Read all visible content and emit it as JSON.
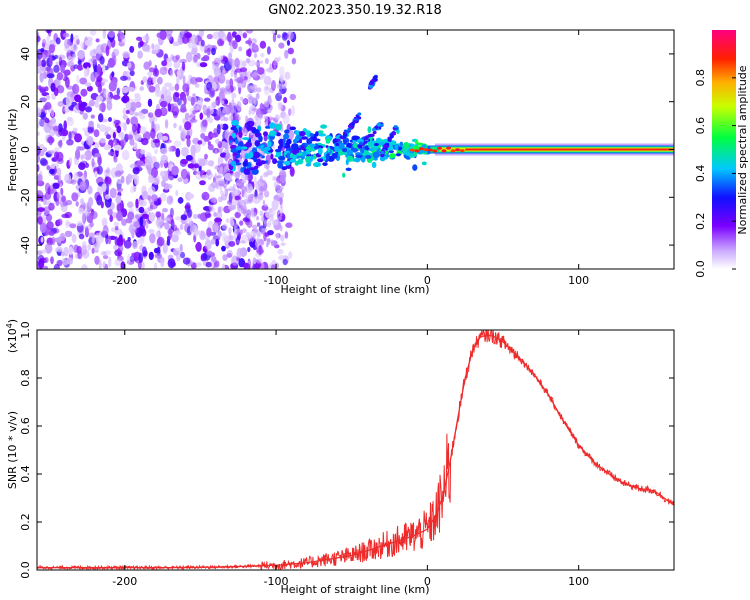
{
  "title": "GN02.2023.350.19.32.R18",
  "colors": {
    "background": "#ffffff",
    "snr_line": "#ee2a2a",
    "axes": "#000000"
  },
  "chart_data": [
    {
      "type": "heatmap",
      "title": "GN02.2023.350.19.32.R18",
      "xlabel": "Height of straight line (km)",
      "ylabel": "Frequency (Hz)",
      "xlim": [
        -258,
        163
      ],
      "ylim": [
        -50,
        50
      ],
      "x_ticks": [
        -200,
        -100,
        0,
        100
      ],
      "x_tick_labels": [
        "-200",
        "-100",
        "0",
        "100"
      ],
      "y_ticks": [
        -40,
        -20,
        0,
        20,
        40
      ],
      "y_tick_labels": [
        "-40",
        "-20",
        "0",
        "20",
        "40"
      ],
      "colorbar": {
        "label": "Normalized spectral amplitude",
        "range": [
          0.0,
          1.0
        ],
        "ticks": [
          0.0,
          0.2,
          0.4,
          0.6,
          0.8
        ],
        "tick_labels": [
          "0.0",
          "0.2",
          "0.4",
          "0.6",
          "0.8"
        ],
        "colormap": "rainbow (white-purple-blue-cyan-green-yellow-red-magenta)"
      },
      "features": [
        {
          "description": "diffuse noise",
          "x_range": [
            -258,
            -95
          ],
          "y_range": [
            -50,
            50
          ],
          "amplitude": 0.1
        },
        {
          "description": "tapering signal onset",
          "x_range": [
            -130,
            0
          ],
          "y_center": 0,
          "amplitude": 0.3
        },
        {
          "description": "strong carrier line",
          "x_range": [
            0,
            163
          ],
          "y_center": 0,
          "amplitude": 0.9
        }
      ]
    },
    {
      "type": "line",
      "xlabel": "Height of straight line (km)",
      "ylabel": "SNR (10 * v/v)",
      "y_scale_label": "(x10",
      "y_scale_exponent": "4",
      "xlim": [
        -258,
        163
      ],
      "ylim": [
        0.0,
        1.0
      ],
      "x_ticks": [
        -200,
        -100,
        0,
        100
      ],
      "x_tick_labels": [
        "-200",
        "-100",
        "0",
        "100"
      ],
      "y_ticks": [
        0.0,
        0.2,
        0.4,
        0.6,
        0.8,
        1.0
      ],
      "y_tick_labels": [
        "0.0",
        "0.2",
        "0.4",
        "0.6",
        "0.8",
        "1.0"
      ],
      "series": [
        {
          "name": "SNR",
          "x": [
            -258,
            -230,
            -200,
            -170,
            -140,
            -120,
            -100,
            -90,
            -80,
            -70,
            -60,
            -50,
            -40,
            -30,
            -20,
            -10,
            0,
            5,
            10,
            15,
            20,
            25,
            30,
            35,
            40,
            45,
            50,
            55,
            60,
            70,
            80,
            90,
            100,
            110,
            120,
            130,
            140,
            150,
            163
          ],
          "y": [
            0.01,
            0.01,
            0.01,
            0.01,
            0.012,
            0.015,
            0.02,
            0.025,
            0.03,
            0.04,
            0.05,
            0.06,
            0.08,
            0.1,
            0.12,
            0.14,
            0.17,
            0.22,
            0.3,
            0.45,
            0.63,
            0.8,
            0.92,
            0.97,
            0.98,
            0.97,
            0.95,
            0.92,
            0.89,
            0.82,
            0.73,
            0.62,
            0.52,
            0.45,
            0.4,
            0.36,
            0.34,
            0.33,
            0.27
          ]
        }
      ]
    }
  ]
}
